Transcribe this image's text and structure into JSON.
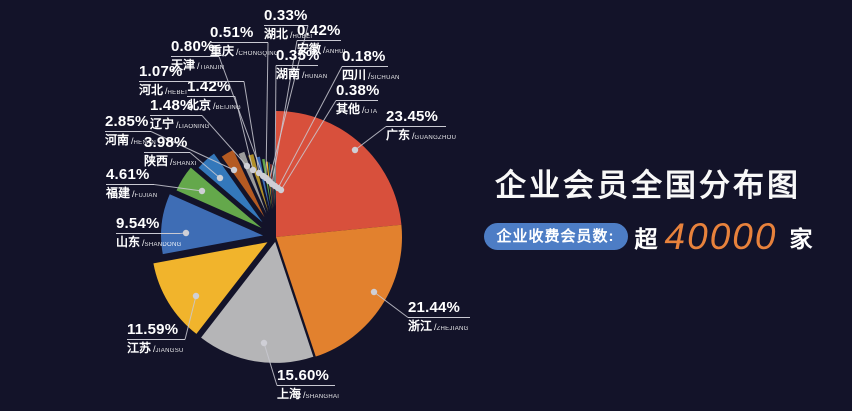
{
  "title": "企业会员全国分布图",
  "stats": {
    "badge_label": "企业收费会员数:",
    "prefix": "超",
    "value": "40000",
    "suffix": "家",
    "value_color": "#e8823c",
    "badge_color": "#4d7dc5"
  },
  "colors": {
    "background": "#131329",
    "leader_line": "#c9c9d2",
    "dot_fill": "#cfcfd6",
    "label_text": "#ffffff"
  },
  "chart_data": {
    "type": "pie",
    "title": "企业会员全国分布图",
    "value_unit": "percent",
    "total": 100.0,
    "legend_position": "none",
    "slices": [
      {
        "name": "广东",
        "pinyin": "GUANGZHOU",
        "value": 23.45,
        "color": "#d8503c"
      },
      {
        "name": "浙江",
        "pinyin": "ZHEJIANG",
        "value": 21.44,
        "color": "#e2812e"
      },
      {
        "name": "上海",
        "pinyin": "SHANGHAI",
        "value": 15.6,
        "color": "#b5b5b7"
      },
      {
        "name": "江苏",
        "pinyin": "JIANGSU",
        "value": 11.59,
        "color": "#f1b42c"
      },
      {
        "name": "山东",
        "pinyin": "SHANDONG",
        "value": 9.54,
        "color": "#3e6db5"
      },
      {
        "name": "福建",
        "pinyin": "FUJIAN",
        "value": 4.61,
        "color": "#64a84b"
      },
      {
        "name": "陕西",
        "pinyin": "SHANXI",
        "value": 3.98,
        "color": "#3478bb"
      },
      {
        "name": "河南",
        "pinyin": "HENAN",
        "value": 2.85,
        "color": "#b45a22"
      },
      {
        "name": "辽宁",
        "pinyin": "LIAONING",
        "value": 1.48,
        "color": "#9b9b9b"
      },
      {
        "name": "北京",
        "pinyin": "BEIJING",
        "value": 1.42,
        "color": "#b08f29"
      },
      {
        "name": "河北",
        "pinyin": "HEBEI",
        "value": 1.07,
        "color": "#3e6db5"
      },
      {
        "name": "天津",
        "pinyin": "TIANJIN",
        "value": 0.8,
        "color": "#64a84b"
      },
      {
        "name": "重庆",
        "pinyin": "CHONGQING",
        "value": 0.51,
        "color": "#f1b42c"
      },
      {
        "name": "湖北",
        "pinyin": "HUBEI",
        "value": 0.33,
        "color": "#43929b"
      },
      {
        "name": "安徽",
        "pinyin": "ANHUI",
        "value": 0.42,
        "color": "#c0493a"
      },
      {
        "name": "湖南",
        "pinyin": "HUNAN",
        "value": 0.35,
        "color": "#9b9b9b"
      },
      {
        "name": "四川",
        "pinyin": "SICHUAN",
        "value": 0.18,
        "color": "#54934e"
      },
      {
        "name": "其他",
        "pinyin": "OTA",
        "value": 0.38,
        "color": "#4a9a9a"
      }
    ]
  }
}
